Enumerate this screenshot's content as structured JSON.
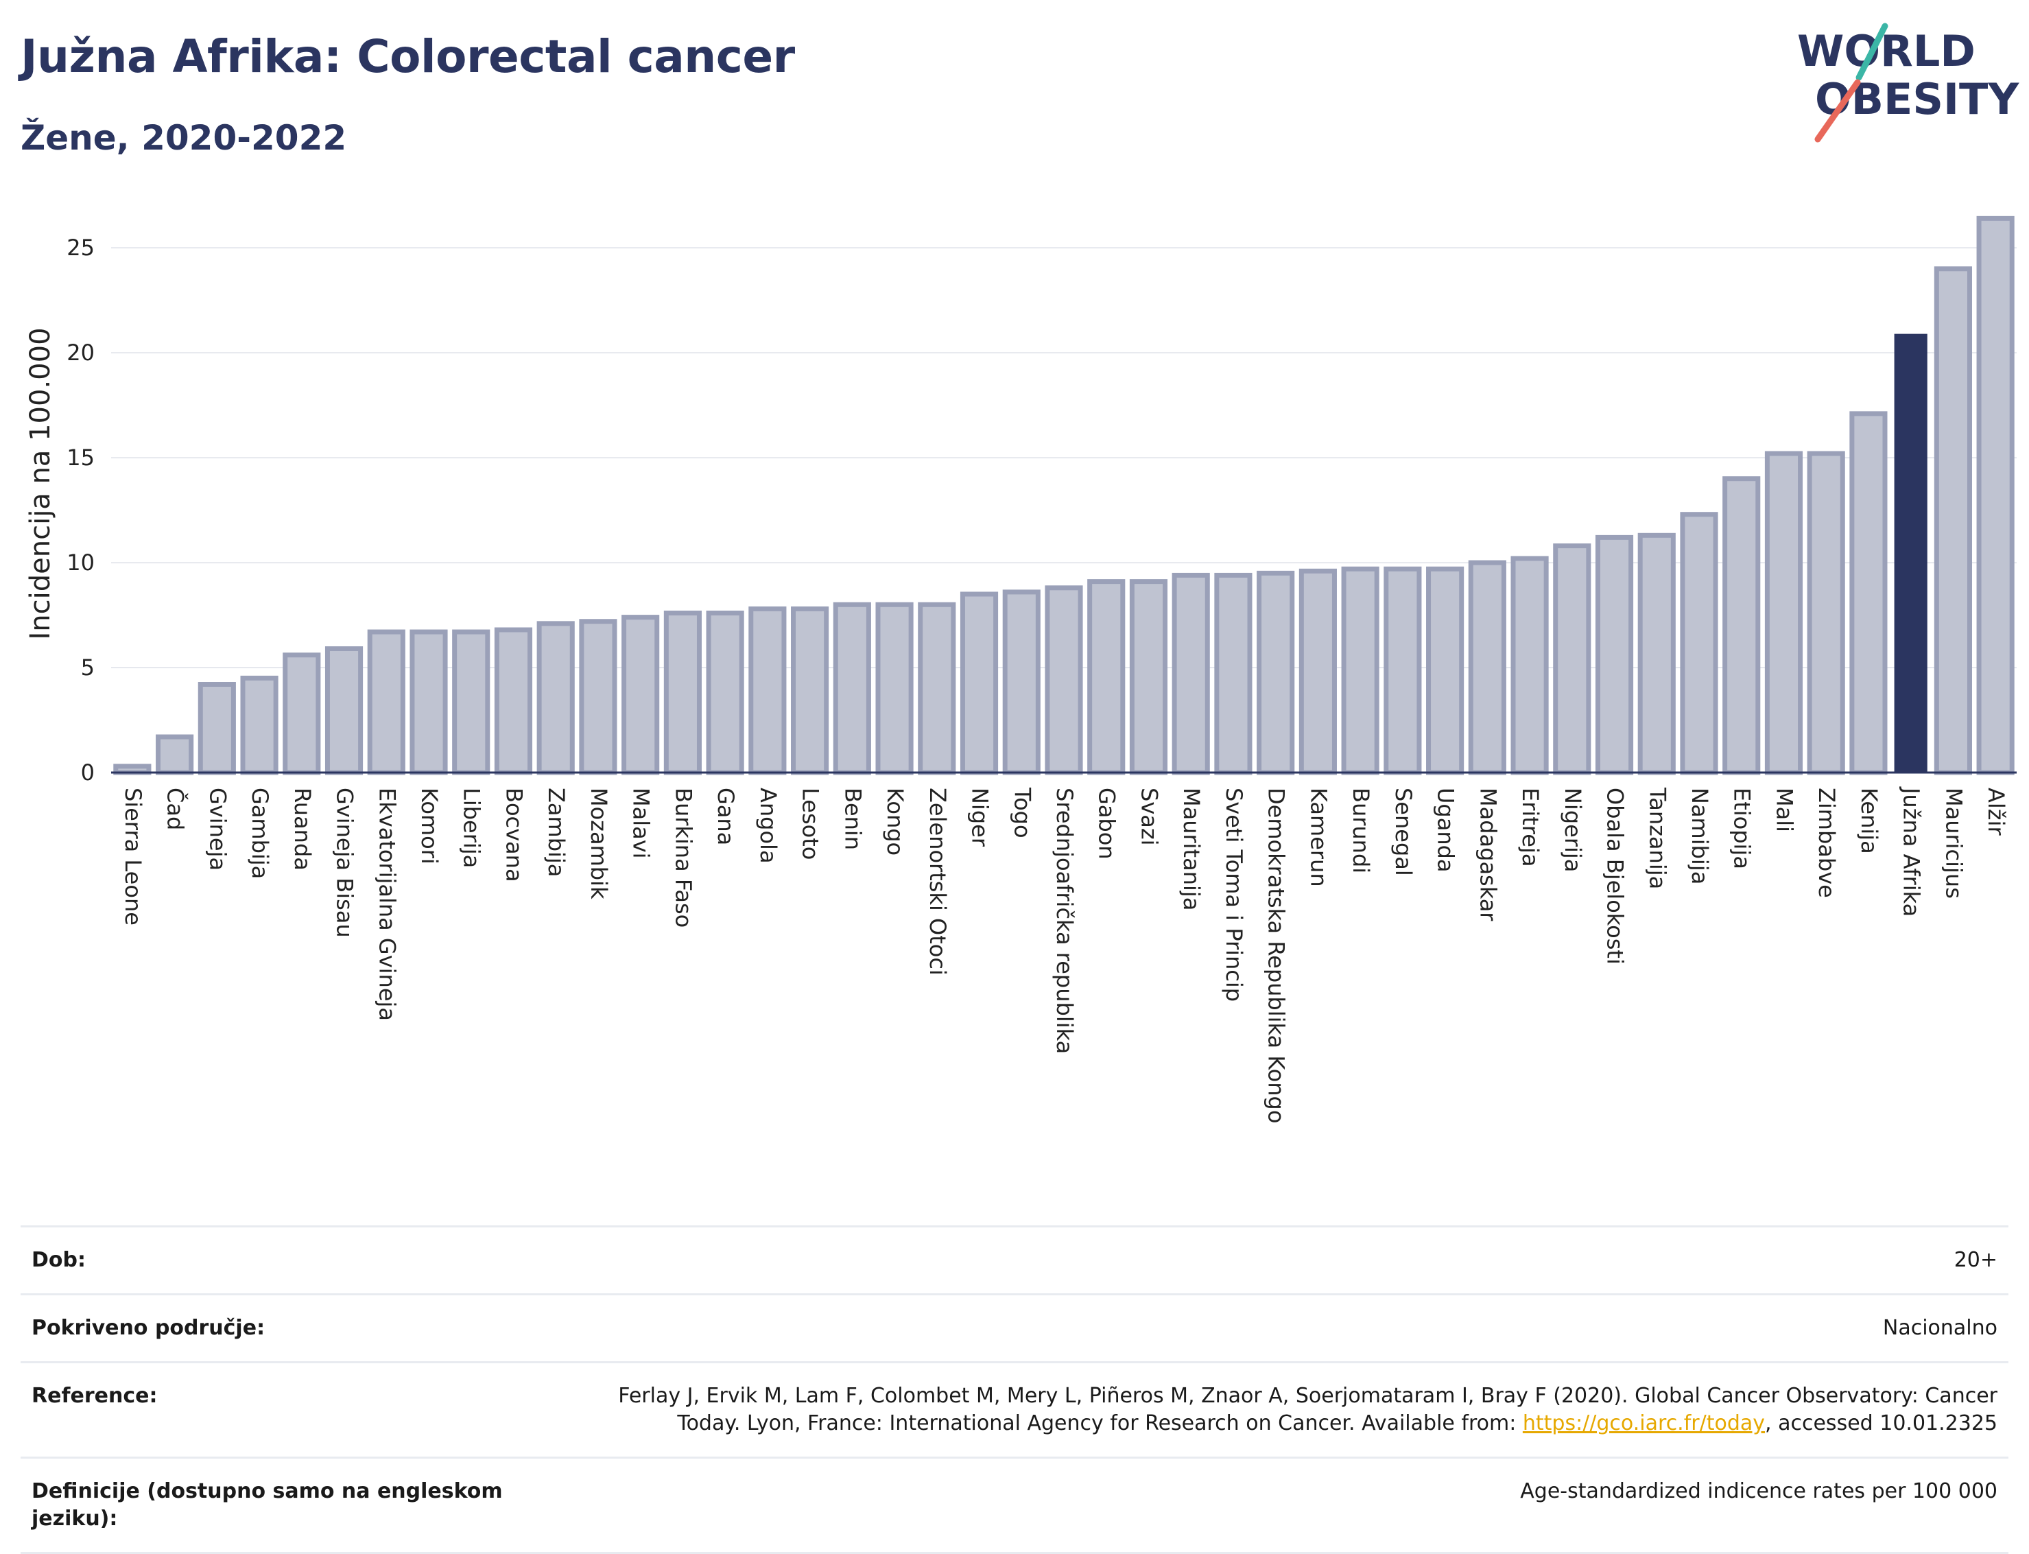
{
  "header": {
    "title": "Južna Afrika: Colorectal cancer",
    "subtitle": "Žene, 2020-2022"
  },
  "logo": {
    "line1": "WORLD",
    "line2": "OBESITY"
  },
  "chart_data": {
    "type": "bar",
    "ylabel": "Incidencija na 100.000",
    "ylim": [
      0,
      27
    ],
    "yticks": [
      0,
      5,
      10,
      15,
      20,
      25
    ],
    "grid": true,
    "categories": [
      "Sierra Leone",
      "Čad",
      "Gvineja",
      "Gambija",
      "Ruanda",
      "Gvineja Bisau",
      "Ekvatorijalna Gvineja",
      "Komori",
      "Liberija",
      "Bocvana",
      "Zambija",
      "Mozambik",
      "Malavi",
      "Burkina Faso",
      "Gana",
      "Angola",
      "Lesoto",
      "Benin",
      "Kongo",
      "Zelenortski Otoci",
      "Niger",
      "Togo",
      "Srednjoafrička republika",
      "Gabon",
      "Svazi",
      "Mauritanija",
      "Sveti Toma i Princip",
      "Demokratska Republika Kongo",
      "Kamerun",
      "Burundi",
      "Senegal",
      "Uganda",
      "Madagaskar",
      "Eritreja",
      "Nigerija",
      "Obala Bjelokosti",
      "Tanzanija",
      "Namibija",
      "Etiopija",
      "Mali",
      "Zimbabve",
      "Kenija",
      "Južna Afrika",
      "Mauricijus",
      "Alžir"
    ],
    "values": [
      0.3,
      1.7,
      4.2,
      4.5,
      5.6,
      5.9,
      6.7,
      6.7,
      6.7,
      6.8,
      7.1,
      7.2,
      7.4,
      7.6,
      7.6,
      7.8,
      7.8,
      8.0,
      8.0,
      8.0,
      8.5,
      8.6,
      8.8,
      9.1,
      9.1,
      9.4,
      9.4,
      9.5,
      9.6,
      9.7,
      9.7,
      9.7,
      10.0,
      10.2,
      10.8,
      11.2,
      11.3,
      12.3,
      14.0,
      15.2,
      15.2,
      17.1,
      20.9,
      24.0,
      26.4
    ],
    "highlight": "Južna Afrika",
    "colors": {
      "bar": "#bfc3d1",
      "bar_edge": "#9aa0b8",
      "highlight": "#2b3560",
      "grid": "#e6e8ee",
      "axis": "#2b3560"
    }
  },
  "meta": {
    "rows": [
      {
        "key": "Dob:",
        "value": "20+"
      },
      {
        "key": "Pokriveno područje:",
        "value": "Nacionalno"
      },
      {
        "key": "Reference:",
        "value_pre": "Ferlay J, Ervik M, Lam F, Colombet M, Mery L, Piñeros M, Znaor A, Soerjomataram I, Bray F (2020). Global Cancer Observatory: Cancer Today. Lyon, France: International Agency for Research on Cancer. Available from: ",
        "link": "https://gco.iarc.fr/today",
        "value_post": ", accessed 10.01.2325"
      },
      {
        "key": "Definicije (dostupno samo na engleskom jeziku):",
        "value": "Age-standardized indicence rates per 100 000"
      }
    ]
  }
}
